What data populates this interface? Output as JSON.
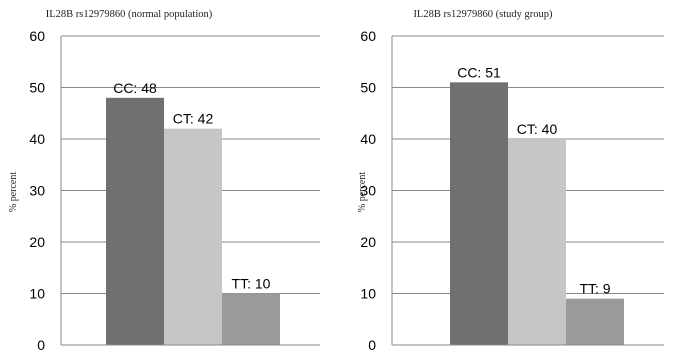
{
  "chart_data": [
    {
      "type": "bar",
      "title": "IL28B rs12979860 (normal population)",
      "xlabel": "",
      "ylabel": "% percent",
      "categories": [
        "CC",
        "CT",
        "TT"
      ],
      "values": [
        48,
        42,
        10
      ],
      "data_labels": [
        "CC: 48",
        "CT: 42",
        "TT: 10"
      ],
      "bar_colors": [
        "#707070",
        "#c6c6c6",
        "#9a9a9a"
      ],
      "ylim": [
        0,
        60
      ],
      "yticks": [
        "0",
        "10",
        "20",
        "30",
        "40",
        "50",
        "60"
      ],
      "grid": true,
      "legend": "none"
    },
    {
      "type": "bar",
      "title": "IL28B rs12979860 (study group)",
      "xlabel": "",
      "ylabel": "% percent",
      "categories": [
        "CC",
        "CT",
        "TT"
      ],
      "values": [
        51,
        40,
        9
      ],
      "data_labels": [
        "CC: 51",
        "CT: 40",
        "TT: 9"
      ],
      "bar_colors": [
        "#707070",
        "#c6c6c6",
        "#9a9a9a"
      ],
      "ylim": [
        0,
        60
      ],
      "yticks": [
        "0",
        "10",
        "20",
        "30",
        "40",
        "50",
        "60"
      ],
      "grid": true,
      "legend": "none"
    }
  ]
}
